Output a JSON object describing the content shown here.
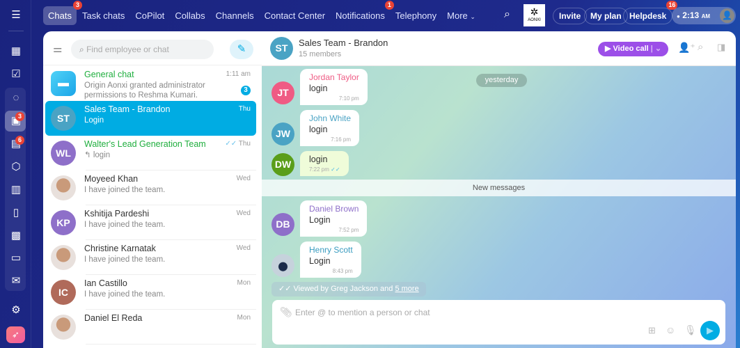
{
  "nav": {
    "tabs": [
      {
        "label": "Chats",
        "badge": "3"
      },
      {
        "label": "Task chats"
      },
      {
        "label": "CoPilot"
      },
      {
        "label": "Collabs"
      },
      {
        "label": "Channels"
      },
      {
        "label": "Contact Center"
      },
      {
        "label": "Notifications",
        "badge": "1"
      },
      {
        "label": "Telephony"
      },
      {
        "label": "More"
      }
    ],
    "logo_text": "AONXI",
    "invite": "Invite",
    "my_plan": "My plan",
    "helpdesk": "Helpdesk",
    "helpdesk_badge": "16",
    "time": "2:13",
    "ampm": "AM"
  },
  "sidebar": {
    "chats_badge": "3",
    "tasks_badge": "6"
  },
  "list": {
    "search_placeholder": "Find employee or chat",
    "items": [
      {
        "name": "General chat",
        "preview": "Origin Aonxi granted administrator permissions to Reshma Kumari.",
        "time": "1:11 am",
        "unread": "3"
      },
      {
        "name": "Sales Team - Brandon",
        "initials": "ST",
        "preview": "Login",
        "time": "Thu",
        "color": "#4aa3c4"
      },
      {
        "name": "Walter's Lead Generation Team",
        "initials": "WL",
        "preview": "login",
        "time": "Thu",
        "color": "#8e6fc9"
      },
      {
        "name": "Moyeed Khan",
        "preview": "I have joined the team.",
        "time": "Wed"
      },
      {
        "name": "Kshitija Pardeshi",
        "initials": "KP",
        "preview": "I have joined the team.",
        "time": "Wed",
        "color": "#8e6fc9"
      },
      {
        "name": "Christine Karnatak",
        "preview": "I have joined the team.",
        "time": "Wed"
      },
      {
        "name": "Ian Castillo",
        "initials": "IC",
        "preview": "I have joined the team.",
        "time": "Mon",
        "color": "#b06a5a"
      },
      {
        "name": "Daniel El Reda",
        "preview": "",
        "time": "Mon"
      }
    ]
  },
  "chat": {
    "title": "Sales Team - Brandon",
    "members": "15 members",
    "initials": "ST",
    "video_call": "Video call",
    "date_label": "yesterday",
    "new_messages": "New messages",
    "messages": [
      {
        "sender": "Jordan Taylor",
        "initials": "JT",
        "text": "login",
        "time": "7:10 pm",
        "color": "#ef5b84"
      },
      {
        "sender": "John White",
        "initials": "JW",
        "text": "login",
        "time": "7:16 pm",
        "color": "#4aa3c4"
      },
      {
        "initials": "DW",
        "text": "login",
        "time": "7:22 pm",
        "color": "#5a9e1a"
      },
      {
        "sender": "Daniel Brown",
        "initials": "DB",
        "text": "Login",
        "time": "7:52 pm",
        "color": "#8e6fc9"
      },
      {
        "sender": "Henry Scott",
        "text": "Login",
        "time": "8:43 pm",
        "color": "#3a9cc0"
      }
    ],
    "viewed_by": "Viewed by Greg Jackson and",
    "viewed_more": "5 more",
    "input_placeholder": "Enter @ to mention a person or chat"
  },
  "colors": {
    "accent": "#00ace3",
    "video": "#9c4fe8",
    "nav_bg": "#1a237e"
  }
}
